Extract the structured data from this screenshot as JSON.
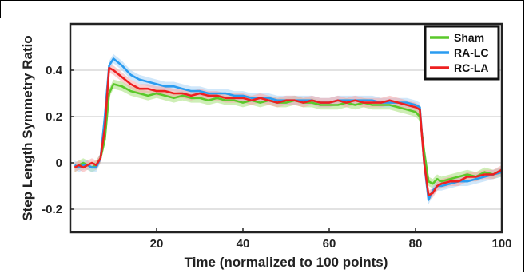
{
  "chart_data": {
    "type": "line",
    "title": "",
    "xlabel": "Time (normalized to 100 points)",
    "ylabel": "Step Length Symmetry Ratio",
    "xlim": [
      0,
      100
    ],
    "ylim": [
      -0.3,
      0.6
    ],
    "xticks": [
      20,
      40,
      60,
      80,
      100
    ],
    "xtick_labels": [
      "20",
      "40",
      "60",
      "80",
      "100"
    ],
    "yticks": [
      -0.2,
      0,
      0.2,
      0.4
    ],
    "ytick_labels": [
      "-0.2",
      "0",
      "0.2",
      "0.4"
    ],
    "grid": "horizontal",
    "legend_position": "top-right",
    "series": [
      {
        "name": "Sham",
        "color": "#5ac82a",
        "band_color": "#a6e07a",
        "x": [
          1,
          2,
          3,
          4,
          5,
          6,
          7,
          8,
          9,
          10,
          12,
          14,
          16,
          18,
          20,
          22,
          24,
          26,
          28,
          30,
          32,
          34,
          36,
          38,
          40,
          42,
          44,
          46,
          48,
          50,
          52,
          54,
          56,
          58,
          60,
          62,
          64,
          66,
          68,
          70,
          72,
          74,
          76,
          78,
          80,
          81,
          82,
          83,
          84,
          85,
          86,
          88,
          90,
          92,
          94,
          96,
          98,
          100
        ],
        "y": [
          -0.02,
          -0.01,
          0.0,
          -0.01,
          -0.02,
          -0.01,
          0.02,
          0.1,
          0.3,
          0.34,
          0.33,
          0.31,
          0.3,
          0.29,
          0.3,
          0.29,
          0.28,
          0.29,
          0.28,
          0.28,
          0.27,
          0.28,
          0.27,
          0.27,
          0.26,
          0.27,
          0.26,
          0.27,
          0.26,
          0.26,
          0.27,
          0.26,
          0.26,
          0.25,
          0.25,
          0.25,
          0.26,
          0.25,
          0.26,
          0.25,
          0.25,
          0.25,
          0.24,
          0.23,
          0.22,
          0.2,
          0.05,
          -0.08,
          -0.09,
          -0.07,
          -0.08,
          -0.07,
          -0.06,
          -0.05,
          -0.06,
          -0.04,
          -0.05,
          -0.04
        ]
      },
      {
        "name": "RA-LC",
        "color": "#2a9cf0",
        "band_color": "#a9d4f5",
        "x": [
          1,
          2,
          3,
          4,
          5,
          6,
          7,
          8,
          9,
          10,
          12,
          14,
          16,
          18,
          20,
          22,
          24,
          26,
          28,
          30,
          32,
          34,
          36,
          38,
          40,
          42,
          44,
          46,
          48,
          50,
          52,
          54,
          56,
          58,
          60,
          62,
          64,
          66,
          68,
          70,
          72,
          74,
          76,
          78,
          80,
          81,
          82,
          83,
          84,
          85,
          86,
          88,
          90,
          92,
          94,
          96,
          98,
          100
        ],
        "y": [
          -0.01,
          -0.02,
          -0.01,
          -0.01,
          -0.02,
          -0.02,
          0.02,
          0.2,
          0.42,
          0.45,
          0.42,
          0.38,
          0.36,
          0.35,
          0.34,
          0.33,
          0.33,
          0.32,
          0.31,
          0.31,
          0.3,
          0.3,
          0.3,
          0.29,
          0.29,
          0.28,
          0.28,
          0.28,
          0.27,
          0.27,
          0.27,
          0.27,
          0.27,
          0.26,
          0.26,
          0.27,
          0.27,
          0.27,
          0.27,
          0.27,
          0.26,
          0.26,
          0.26,
          0.26,
          0.25,
          0.24,
          0.0,
          -0.16,
          -0.12,
          -0.1,
          -0.1,
          -0.09,
          -0.08,
          -0.08,
          -0.07,
          -0.06,
          -0.05,
          -0.04
        ]
      },
      {
        "name": "RC-LA",
        "color": "#ee2020",
        "band_color": "#f5a8a8",
        "x": [
          1,
          2,
          3,
          4,
          5,
          6,
          7,
          8,
          9,
          10,
          12,
          14,
          16,
          18,
          20,
          22,
          24,
          26,
          28,
          30,
          32,
          34,
          36,
          38,
          40,
          42,
          44,
          46,
          48,
          50,
          52,
          54,
          56,
          58,
          60,
          62,
          64,
          66,
          68,
          70,
          72,
          74,
          76,
          78,
          80,
          81,
          82,
          83,
          84,
          85,
          86,
          88,
          90,
          92,
          94,
          96,
          98,
          100
        ],
        "y": [
          -0.02,
          -0.01,
          -0.02,
          -0.01,
          0.0,
          -0.01,
          0.02,
          0.15,
          0.41,
          0.4,
          0.37,
          0.34,
          0.32,
          0.32,
          0.31,
          0.31,
          0.3,
          0.3,
          0.29,
          0.3,
          0.29,
          0.29,
          0.28,
          0.28,
          0.28,
          0.27,
          0.28,
          0.27,
          0.26,
          0.27,
          0.27,
          0.26,
          0.27,
          0.26,
          0.26,
          0.27,
          0.26,
          0.27,
          0.26,
          0.26,
          0.26,
          0.27,
          0.26,
          0.25,
          0.24,
          0.23,
          0.0,
          -0.14,
          -0.13,
          -0.1,
          -0.09,
          -0.08,
          -0.08,
          -0.06,
          -0.06,
          -0.05,
          -0.05,
          -0.03
        ]
      }
    ]
  }
}
